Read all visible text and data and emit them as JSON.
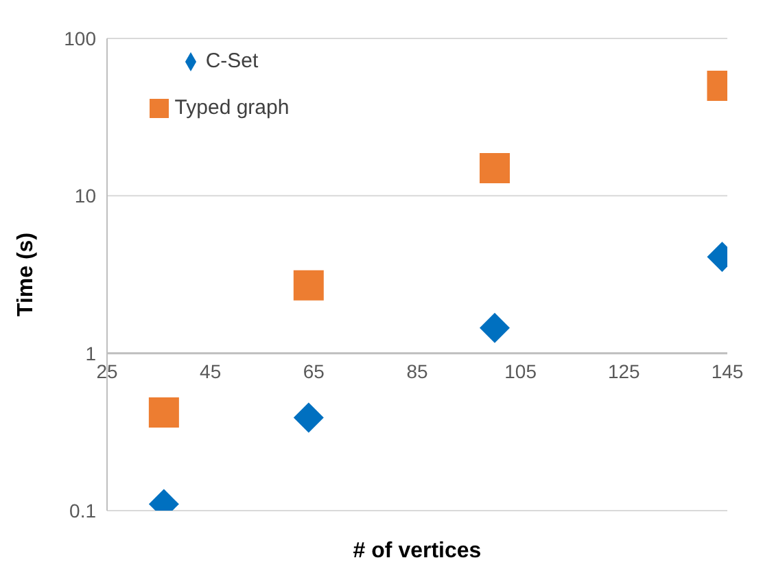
{
  "chart_data": {
    "type": "scatter",
    "xlabel": "# of vertices",
    "ylabel": "Time (s)",
    "xlim": [
      25,
      145
    ],
    "xticks": [
      25,
      45,
      65,
      85,
      105,
      125,
      145
    ],
    "ylim": [
      0.1,
      100
    ],
    "yticks": [
      0.1,
      1,
      10,
      100
    ],
    "log": "y",
    "grid": "y",
    "legend": "top left",
    "series": [
      {
        "name": "C-Set",
        "color": "#0070c0",
        "marker": "diamond",
        "x": [
          36,
          64,
          100,
          144
        ],
        "values": [
          0.11,
          0.39,
          1.45,
          4.1
        ]
      },
      {
        "name": "Typed graph",
        "color": "#ed7d31",
        "marker": "square",
        "x": [
          36,
          64,
          100,
          144
        ],
        "values": [
          0.42,
          2.7,
          15,
          50
        ]
      }
    ]
  }
}
